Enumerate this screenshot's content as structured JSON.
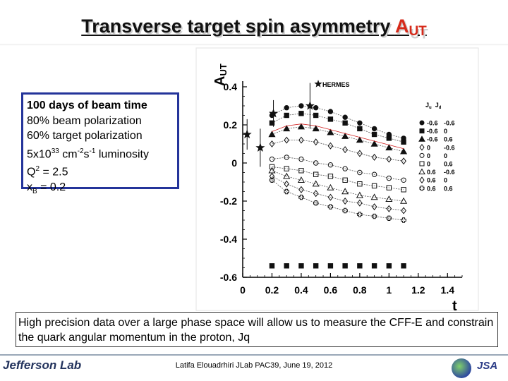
{
  "slide": {
    "title_main": "Transverse target spin asymmetry ",
    "title_a": "A",
    "title_sub": "UT"
  },
  "info_box": {
    "line1": "100 days of beam time",
    "line2": "80% beam polarization",
    "line3": "60% target polarization",
    "line4_a": "5x10",
    "line4_sup1": "33",
    "line4_b": " cm",
    "line4_sup2": "-2",
    "line4_c": "s",
    "line4_sup3": "-1",
    "line4_d": " luminosity",
    "line5_a": "Q",
    "line5_sup": "2",
    "line5_b": " = 2.5",
    "line6_a": " x",
    "line6_sub": "B",
    "line6_b": " = 0.2"
  },
  "note_box": {
    "text": "High precision data over a large phase space will allow us to measure the CFF-E and constrain the quark angular momentum in the proton, Jq"
  },
  "footer": {
    "text": "Latifa Elouadrhiri  JLab PAC39, June 19, 2012",
    "left_logo": "Jefferson Lab",
    "right_logo": "JSA"
  },
  "chart_data": {
    "type": "scatter",
    "ylabel": "A",
    "ylabel_sub": "UT",
    "xlabel": "t",
    "xlim": [
      0,
      1.5
    ],
    "ylim": [
      -0.6,
      0.4
    ],
    "x_ticks": [
      "0",
      "0.2",
      "0.4",
      "0.6",
      "0.8",
      "1",
      "1.2",
      "1.4"
    ],
    "y_ticks": [
      "0.4",
      "0.2",
      "0",
      "-0.2",
      "-0.4",
      "-0.6"
    ],
    "legend_header": {
      "ju": "J",
      "ju_sub": "u",
      "jd": "J",
      "jd_sub": "d"
    },
    "hermes_label": "HERMES",
    "x_points": [
      0.2,
      0.3,
      0.4,
      0.5,
      0.6,
      0.7,
      0.8,
      0.9,
      1.0,
      1.1
    ],
    "series": [
      {
        "ju": "-0.6",
        "jd": "-0.6",
        "marker": "circle",
        "fill": true,
        "values": [
          0.25,
          0.29,
          0.3,
          0.29,
          0.27,
          0.24,
          0.21,
          0.18,
          0.15,
          0.13
        ]
      },
      {
        "ju": "-0.6",
        "jd": "0",
        "marker": "square",
        "fill": true,
        "values": [
          0.21,
          0.25,
          0.26,
          0.25,
          0.23,
          0.21,
          0.18,
          0.15,
          0.13,
          0.11
        ]
      },
      {
        "ju": "-0.6",
        "jd": "0.6",
        "marker": "triangle",
        "fill": true,
        "values": [
          0.15,
          0.18,
          0.19,
          0.18,
          0.16,
          0.14,
          0.12,
          0.1,
          0.08,
          0.06
        ]
      },
      {
        "ju": "0",
        "jd": "-0.6",
        "marker": "diamond",
        "fill": false,
        "values": [
          0.1,
          0.12,
          0.12,
          0.11,
          0.09,
          0.07,
          0.05,
          0.03,
          0.02,
          0.01
        ]
      },
      {
        "ju": "0",
        "jd": "0",
        "marker": "circle",
        "fill": false,
        "values": [
          0.02,
          0.03,
          0.02,
          0.0,
          -0.01,
          -0.03,
          -0.05,
          -0.06,
          -0.08,
          -0.09
        ]
      },
      {
        "ju": "0",
        "jd": "0.6",
        "marker": "square",
        "fill": false,
        "values": [
          -0.02,
          -0.03,
          -0.04,
          -0.06,
          -0.07,
          -0.09,
          -0.11,
          -0.12,
          -0.13,
          -0.14
        ]
      },
      {
        "ju": "0.6",
        "jd": "-0.6",
        "marker": "triangle",
        "fill": false,
        "values": [
          -0.04,
          -0.07,
          -0.09,
          -0.11,
          -0.13,
          -0.15,
          -0.17,
          -0.18,
          -0.19,
          -0.2
        ]
      },
      {
        "ju": "0.6",
        "jd": "0",
        "marker": "diamond",
        "fill": false,
        "values": [
          -0.07,
          -0.11,
          -0.14,
          -0.16,
          -0.18,
          -0.2,
          -0.21,
          -0.23,
          -0.24,
          -0.25
        ]
      },
      {
        "ju": "0.6",
        "jd": "0.6",
        "marker": "cross",
        "fill": false,
        "values": [
          -0.09,
          -0.15,
          -0.18,
          -0.21,
          -0.23,
          -0.25,
          -0.27,
          -0.28,
          -0.29,
          -0.3
        ]
      }
    ],
    "hermes_points": [
      {
        "x": 0.03,
        "y": 0.15,
        "err": 0.08
      },
      {
        "x": 0.12,
        "y": 0.08,
        "err": 0.1
      },
      {
        "x": 0.21,
        "y": 0.26,
        "err": 0.07
      },
      {
        "x": 0.46,
        "y": 0.3,
        "err": 0.12
      }
    ],
    "baseline_points": {
      "y": -0.54,
      "x": [
        0.2,
        0.3,
        0.4,
        0.5,
        0.6,
        0.7,
        0.8,
        0.9,
        1.0,
        1.1
      ]
    },
    "colors": {
      "points": "#111111",
      "curves": "#555555",
      "hermes_curve": "#d02020"
    }
  }
}
